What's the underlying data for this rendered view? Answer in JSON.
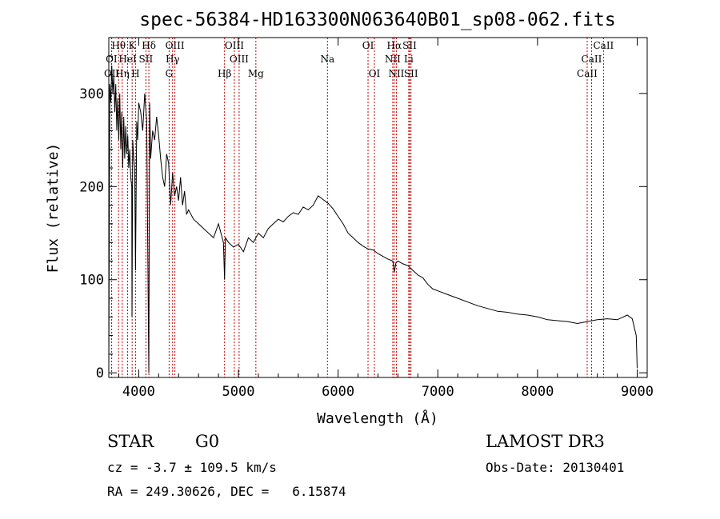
{
  "chart_data": {
    "type": "line",
    "title": "spec-56384-HD163300N063640B01_sp08-062.fits",
    "xlabel": "Wavelength (Å)",
    "ylabel": "Flux (relative)",
    "xlim": [
      3700,
      9100
    ],
    "ylim": [
      -5,
      360
    ],
    "xticks": [
      4000,
      5000,
      6000,
      7000,
      8000,
      9000
    ],
    "yticks": [
      0,
      100,
      200,
      300
    ],
    "grid": false,
    "series": [
      {
        "x": [
          3700,
          3710,
          3720,
          3730,
          3740,
          3750,
          3760,
          3770,
          3780,
          3790,
          3800,
          3810,
          3820,
          3830,
          3840,
          3850,
          3860,
          3870,
          3880,
          3890,
          3900,
          3910,
          3920,
          3930,
          3933,
          3940,
          3950,
          3960,
          3968,
          3980,
          3990,
          4000,
          4020,
          4040,
          4060,
          4080,
          4101,
          4110,
          4120,
          4140,
          4160,
          4180,
          4200,
          4220,
          4240,
          4260,
          4280,
          4300,
          4320,
          4340,
          4360,
          4380,
          4400,
          4420,
          4440,
          4460,
          4480,
          4500,
          4550,
          4600,
          4650,
          4700,
          4750,
          4800,
          4850,
          4861,
          4870,
          4900,
          4950,
          5000,
          5050,
          5100,
          5150,
          5200,
          5250,
          5300,
          5350,
          5400,
          5450,
          5500,
          5550,
          5600,
          5650,
          5700,
          5750,
          5800,
          5850,
          5900,
          5950,
          6000,
          6050,
          6100,
          6150,
          6200,
          6250,
          6300,
          6350,
          6400,
          6450,
          6500,
          6550,
          6563,
          6580,
          6600,
          6650,
          6700,
          6750,
          6800,
          6850,
          6900,
          6950,
          7000,
          7100,
          7200,
          7300,
          7400,
          7500,
          7600,
          7700,
          7800,
          7900,
          8000,
          8100,
          8200,
          8300,
          8400,
          8500,
          8600,
          8700,
          8800,
          8900,
          8950,
          8990,
          9000
        ],
        "y": [
          0,
          310,
          290,
          330,
          300,
          320,
          280,
          310,
          260,
          295,
          250,
          300,
          240,
          280,
          220,
          275,
          230,
          265,
          235,
          255,
          220,
          240,
          210,
          200,
          60,
          250,
          230,
          220,
          110,
          270,
          250,
          290,
          280,
          260,
          300,
          270,
          0,
          290,
          230,
          260,
          250,
          275,
          255,
          230,
          210,
          200,
          235,
          225,
          180,
          215,
          190,
          200,
          185,
          210,
          180,
          195,
          170,
          175,
          165,
          160,
          155,
          150,
          145,
          160,
          140,
          100,
          145,
          140,
          135,
          138,
          130,
          145,
          140,
          150,
          145,
          155,
          160,
          165,
          162,
          168,
          172,
          170,
          178,
          175,
          180,
          190,
          186,
          182,
          176,
          168,
          160,
          150,
          145,
          140,
          136,
          133,
          132,
          128,
          125,
          122,
          120,
          108,
          118,
          120,
          117,
          115,
          110,
          105,
          102,
          95,
          90,
          88,
          84,
          80,
          76,
          72,
          69,
          66,
          65,
          63,
          62,
          60,
          57,
          56,
          55,
          53,
          55,
          57,
          58,
          57,
          62,
          58,
          40,
          5
        ]
      }
    ],
    "annotations": [
      {
        "label": "Hθ",
        "x": 3798,
        "row": 1
      },
      {
        "label": "K",
        "x": 3934,
        "row": 1
      },
      {
        "label": "Hδ",
        "x": 4102,
        "row": 1
      },
      {
        "label": "OIII",
        "x": 4363,
        "row": 1
      },
      {
        "label": "OIII",
        "x": 4959,
        "row": 1
      },
      {
        "label": "OI",
        "x": 6300,
        "row": 1
      },
      {
        "label": "Hα",
        "x": 6563,
        "row": 1
      },
      {
        "label": "SII",
        "x": 6717,
        "row": 1
      },
      {
        "label": "CaII",
        "x": 8662,
        "row": 1
      },
      {
        "label": "OI",
        "x": 3727,
        "row": 2
      },
      {
        "label": "HeI",
        "x": 3889,
        "row": 2
      },
      {
        "label": "SII",
        "x": 4072,
        "row": 2
      },
      {
        "label": "Hγ",
        "x": 4340,
        "row": 2
      },
      {
        "label": "OIII",
        "x": 5007,
        "row": 2
      },
      {
        "label": "Na",
        "x": 5893,
        "row": 2
      },
      {
        "label": "NII",
        "x": 6548,
        "row": 2
      },
      {
        "label": "Li",
        "x": 6708,
        "row": 2
      },
      {
        "label": "CaII",
        "x": 8542,
        "row": 2
      },
      {
        "label": "OII",
        "x": 3729,
        "row": 3
      },
      {
        "label": "Hη",
        "x": 3835,
        "row": 3
      },
      {
        "label": "H",
        "x": 3968,
        "row": 3
      },
      {
        "label": "G",
        "x": 4305,
        "row": 3
      },
      {
        "label": "Hβ",
        "x": 4861,
        "row": 3
      },
      {
        "label": "Mg",
        "x": 5175,
        "row": 3
      },
      {
        "label": "OI",
        "x": 6364,
        "row": 3
      },
      {
        "label": "NII",
        "x": 6584,
        "row": 3
      },
      {
        "label": "SII",
        "x": 6731,
        "row": 3
      },
      {
        "label": "CaII",
        "x": 8498,
        "row": 3
      }
    ],
    "lines": [
      3727,
      3729,
      3798,
      3835,
      3889,
      3934,
      3968,
      4072,
      4102,
      4305,
      4340,
      4363,
      4861,
      4959,
      5007,
      5175,
      5893,
      6300,
      6364,
      6548,
      6563,
      6584,
      6708,
      6717,
      6731,
      8498,
      8542,
      8662
    ],
    "line_color": "#cc0000",
    "spectrum_color": "#000000"
  },
  "info": {
    "object_class": "STAR",
    "subclass": "G0",
    "survey": "LAMOST DR3",
    "cz": "cz = -3.7 ± 109.5 km/s",
    "obs_date": "Obs-Date: 20130401",
    "coords": "RA = 249.30626, DEC =   6.15874"
  }
}
